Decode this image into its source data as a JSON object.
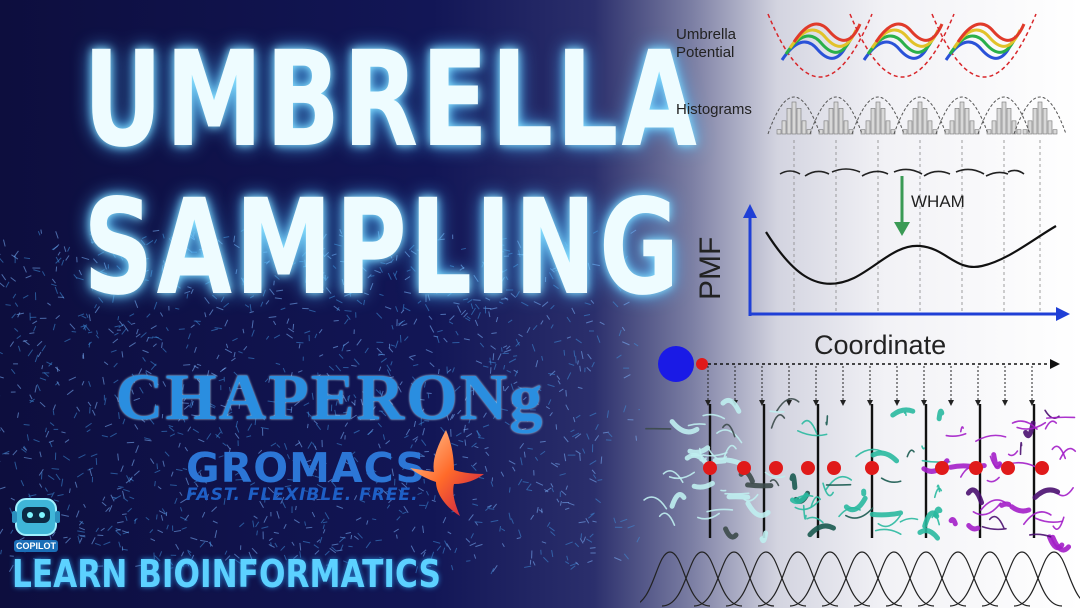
{
  "title": {
    "line1": "UMBRELLA",
    "line2": "SAMPLING"
  },
  "brand": {
    "chaperong": "CHAPERONg",
    "gromacs": "GROMACS",
    "gromacs_tagline": "FAST. FLEXIBLE. FREE.",
    "copilot_badge": "COPILOT",
    "channel": "LEARN BIOINFORMATICS"
  },
  "figure": {
    "umbrella_label": "Umbrella\nPotential",
    "histograms_label": "Histograms",
    "wham_label": "WHAM",
    "pmf_label": "PMF",
    "coordinate_label": "Coordinate"
  },
  "colors": {
    "title_glow": "#8ee6ff",
    "chaperong": "#2a8ee0",
    "gromacs": "#2c76d6",
    "channel_text": "#5cd1ff",
    "pmf_axes": "#1f3fd6",
    "wham_arrow": "#3a9a55",
    "protein_cyan": "#bfeef0",
    "protein_teal": "#2ab9a0",
    "protein_purple": "#a31ec8"
  }
}
